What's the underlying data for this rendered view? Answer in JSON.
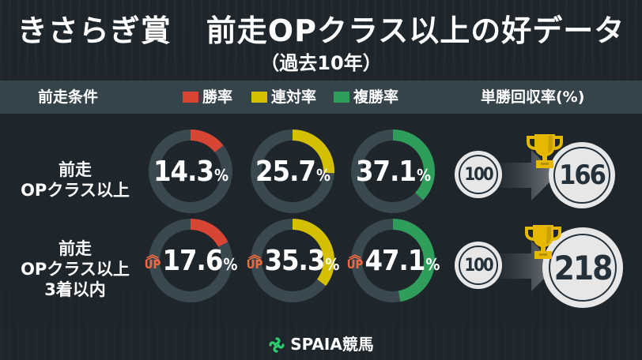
{
  "header": {
    "title_left": "きさらぎ賞",
    "title_right": "前走OPクラス以上の好データ",
    "subtitle": "（過去10年）"
  },
  "table_header": {
    "condition": "前走条件",
    "legend": [
      {
        "label": "勝率",
        "color": "#d94535"
      },
      {
        "label": "連対率",
        "color": "#d4c000"
      },
      {
        "label": "複勝率",
        "color": "#2e9e5a"
      }
    ],
    "roi": "単勝回収率(%)"
  },
  "rows": [
    {
      "label_lines": [
        "前走",
        "OPクラス以上"
      ],
      "win": {
        "value": "14.3",
        "sign": "%",
        "up": false
      },
      "place2": {
        "value": "25.7",
        "sign": "%",
        "up": false
      },
      "place3": {
        "value": "37.1",
        "sign": "%",
        "up": false
      },
      "roi_base": "100",
      "roi": "166"
    },
    {
      "label_lines": [
        "前走",
        "OPクラス以上",
        "3着以内"
      ],
      "win": {
        "value": "17.6",
        "sign": "%",
        "up": true
      },
      "place2": {
        "value": "35.3",
        "sign": "%",
        "up": true
      },
      "place3": {
        "value": "47.1",
        "sign": "%",
        "up": true
      },
      "roi_base": "100",
      "roi": "218"
    }
  ],
  "up_badge": {
    "chevron": "︽",
    "text": "UP",
    "color": "#f26a3d"
  },
  "footer": {
    "brand": "SPAIA競馬"
  },
  "colors": {
    "background": "#1e252b",
    "header_band": "#35434b",
    "donut_track": "#3a4850",
    "win": "#d94535",
    "place2": "#d4c000",
    "place3": "#2e9e5a",
    "trophy": "#e6b800",
    "coin": "#e7e7e7",
    "logo": "#2ecc71"
  },
  "chart_data": {
    "type": "pie",
    "title": "きさらぎ賞 前走OPクラス以上の好データ（過去10年）",
    "categories": [
      "前走OPクラス以上",
      "前走OPクラス以上 3着以内"
    ],
    "series": [
      {
        "name": "勝率",
        "values": [
          14.3,
          17.6
        ]
      },
      {
        "name": "連対率",
        "values": [
          25.7,
          35.3
        ]
      },
      {
        "name": "複勝率",
        "values": [
          37.1,
          47.1
        ]
      },
      {
        "name": "単勝回収率(%)",
        "values": [
          166,
          218
        ]
      }
    ],
    "roi_baseline": 100,
    "legend": [
      "勝率",
      "連対率",
      "複勝率"
    ],
    "legend_position": "top",
    "unit": "%"
  }
}
